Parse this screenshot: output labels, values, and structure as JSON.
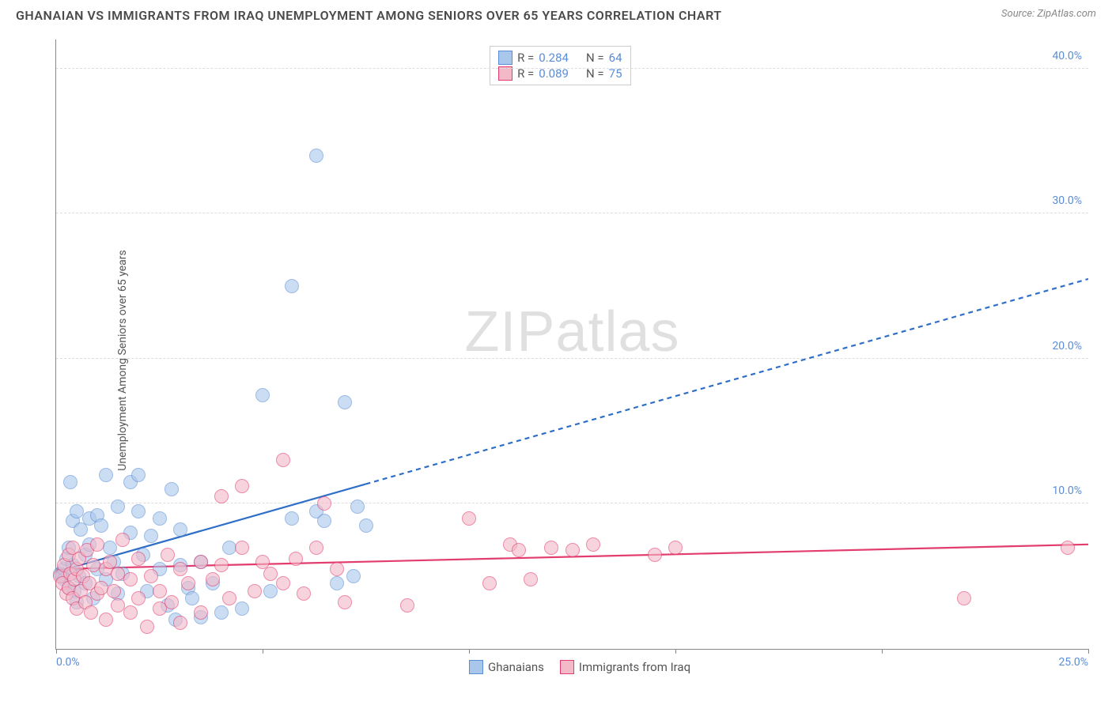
{
  "title": "GHANAIAN VS IMMIGRANTS FROM IRAQ UNEMPLOYMENT AMONG SENIORS OVER 65 YEARS CORRELATION CHART",
  "source": "Source: ZipAtlas.com",
  "y_axis_label": "Unemployment Among Seniors over 65 years",
  "watermark": "ZIPatlas",
  "chart": {
    "type": "scatter",
    "background_color": "#ffffff",
    "grid_color": "#dddddd",
    "axis_color": "#888888",
    "tick_label_color": "#5b8dd6",
    "xlim": [
      0,
      25
    ],
    "ylim": [
      0,
      42
    ],
    "y_ticks": [
      10,
      20,
      30,
      40
    ],
    "y_tick_labels": [
      "10.0%",
      "20.0%",
      "30.0%",
      "40.0%"
    ],
    "x_ticks": [
      0,
      5,
      10,
      15,
      20,
      25
    ],
    "x_tick_labels_visible": {
      "0": "0.0%",
      "25": "25.0%"
    },
    "point_radius": 9,
    "point_border_width": 1,
    "series": [
      {
        "name": "Ghanaians",
        "fill_color": "#a9c7ea",
        "border_color": "#5b8dd6",
        "fill_opacity": 0.6,
        "R": "0.284",
        "N": "64",
        "trend": {
          "x1": 0,
          "y1": 5.3,
          "x2": 25,
          "y2": 25.5,
          "solid_until_x": 7.5,
          "color": "#2f6fc8",
          "width": 2.2,
          "dash": "6,5"
        },
        "points": [
          [
            0.1,
            5.2
          ],
          [
            0.15,
            5.0
          ],
          [
            0.2,
            5.5
          ],
          [
            0.2,
            4.8
          ],
          [
            0.25,
            6.2
          ],
          [
            0.3,
            7.0
          ],
          [
            0.3,
            4.2
          ],
          [
            0.35,
            11.5
          ],
          [
            0.4,
            5.8
          ],
          [
            0.4,
            8.8
          ],
          [
            0.45,
            4.0
          ],
          [
            0.5,
            9.5
          ],
          [
            0.5,
            3.2
          ],
          [
            0.55,
            5.0
          ],
          [
            0.6,
            8.2
          ],
          [
            0.7,
            6.5
          ],
          [
            0.7,
            4.5
          ],
          [
            0.8,
            9.0
          ],
          [
            0.8,
            7.2
          ],
          [
            0.9,
            3.5
          ],
          [
            1.0,
            9.2
          ],
          [
            1.0,
            5.5
          ],
          [
            1.1,
            8.5
          ],
          [
            1.2,
            12.0
          ],
          [
            1.2,
            4.8
          ],
          [
            1.3,
            7.0
          ],
          [
            1.4,
            6.0
          ],
          [
            1.5,
            9.8
          ],
          [
            1.5,
            3.8
          ],
          [
            1.6,
            5.2
          ],
          [
            1.8,
            11.5
          ],
          [
            1.8,
            8.0
          ],
          [
            2.0,
            9.5
          ],
          [
            2.0,
            12.0
          ],
          [
            2.1,
            6.5
          ],
          [
            2.2,
            4.0
          ],
          [
            2.3,
            7.8
          ],
          [
            2.5,
            5.5
          ],
          [
            2.5,
            9.0
          ],
          [
            2.7,
            3.0
          ],
          [
            2.8,
            11.0
          ],
          [
            2.9,
            2.0
          ],
          [
            3.0,
            5.8
          ],
          [
            3.0,
            8.2
          ],
          [
            3.2,
            4.2
          ],
          [
            3.3,
            3.5
          ],
          [
            3.5,
            2.2
          ],
          [
            3.5,
            6.0
          ],
          [
            3.8,
            4.5
          ],
          [
            4.0,
            2.5
          ],
          [
            4.2,
            7.0
          ],
          [
            4.5,
            2.8
          ],
          [
            5.0,
            17.5
          ],
          [
            5.2,
            4.0
          ],
          [
            5.7,
            9.0
          ],
          [
            5.7,
            25.0
          ],
          [
            6.3,
            34.0
          ],
          [
            6.3,
            9.5
          ],
          [
            6.5,
            8.8
          ],
          [
            6.8,
            4.5
          ],
          [
            7.0,
            17.0
          ],
          [
            7.2,
            5.0
          ],
          [
            7.3,
            9.8
          ],
          [
            7.5,
            8.5
          ]
        ]
      },
      {
        "name": "Immigrants from Iraq",
        "fill_color": "#f3b9c8",
        "border_color": "#e23d6e",
        "fill_opacity": 0.6,
        "R": "0.089",
        "N": "75",
        "trend": {
          "x1": 0,
          "y1": 5.5,
          "x2": 25,
          "y2": 7.2,
          "solid_until_x": 25,
          "color": "#e23d6e",
          "width": 2.2,
          "dash": "none"
        },
        "points": [
          [
            0.1,
            5.0
          ],
          [
            0.15,
            4.5
          ],
          [
            0.2,
            5.8
          ],
          [
            0.25,
            3.8
          ],
          [
            0.3,
            6.5
          ],
          [
            0.3,
            4.2
          ],
          [
            0.35,
            5.2
          ],
          [
            0.4,
            7.0
          ],
          [
            0.4,
            3.5
          ],
          [
            0.45,
            4.8
          ],
          [
            0.5,
            5.5
          ],
          [
            0.5,
            2.8
          ],
          [
            0.55,
            6.2
          ],
          [
            0.6,
            4.0
          ],
          [
            0.65,
            5.0
          ],
          [
            0.7,
            3.2
          ],
          [
            0.75,
            6.8
          ],
          [
            0.8,
            4.5
          ],
          [
            0.85,
            2.5
          ],
          [
            0.9,
            5.8
          ],
          [
            1.0,
            3.8
          ],
          [
            1.0,
            7.2
          ],
          [
            1.1,
            4.2
          ],
          [
            1.2,
            5.5
          ],
          [
            1.2,
            2.0
          ],
          [
            1.3,
            6.0
          ],
          [
            1.4,
            4.0
          ],
          [
            1.5,
            3.0
          ],
          [
            1.5,
            5.2
          ],
          [
            1.6,
            7.5
          ],
          [
            1.8,
            2.5
          ],
          [
            1.8,
            4.8
          ],
          [
            2.0,
            6.2
          ],
          [
            2.0,
            3.5
          ],
          [
            2.2,
            1.5
          ],
          [
            2.3,
            5.0
          ],
          [
            2.5,
            4.0
          ],
          [
            2.5,
            2.8
          ],
          [
            2.7,
            6.5
          ],
          [
            2.8,
            3.2
          ],
          [
            3.0,
            5.5
          ],
          [
            3.0,
            1.8
          ],
          [
            3.2,
            4.5
          ],
          [
            3.5,
            6.0
          ],
          [
            3.5,
            2.5
          ],
          [
            3.8,
            4.8
          ],
          [
            4.0,
            10.5
          ],
          [
            4.0,
            5.8
          ],
          [
            4.2,
            3.5
          ],
          [
            4.5,
            11.2
          ],
          [
            4.5,
            7.0
          ],
          [
            4.8,
            4.0
          ],
          [
            5.0,
            6.0
          ],
          [
            5.2,
            5.2
          ],
          [
            5.5,
            13.0
          ],
          [
            5.5,
            4.5
          ],
          [
            5.8,
            6.2
          ],
          [
            6.0,
            3.8
          ],
          [
            6.3,
            7.0
          ],
          [
            6.5,
            10.0
          ],
          [
            6.8,
            5.5
          ],
          [
            7.0,
            3.2
          ],
          [
            8.5,
            3.0
          ],
          [
            10.0,
            9.0
          ],
          [
            10.5,
            4.5
          ],
          [
            11.0,
            7.2
          ],
          [
            11.2,
            6.8
          ],
          [
            11.5,
            4.8
          ],
          [
            12.0,
            7.0
          ],
          [
            12.5,
            6.8
          ],
          [
            13.0,
            7.2
          ],
          [
            14.5,
            6.5
          ],
          [
            15.0,
            7.0
          ],
          [
            22.0,
            3.5
          ],
          [
            24.5,
            7.0
          ]
        ]
      }
    ]
  },
  "legend_top": {
    "rows": [
      {
        "swatch_fill": "#a9c7ea",
        "swatch_border": "#5b8dd6",
        "r_label": "R =",
        "r_val": "0.284",
        "n_label": "N =",
        "n_val": "64"
      },
      {
        "swatch_fill": "#f3b9c8",
        "swatch_border": "#e23d6e",
        "r_label": "R =",
        "r_val": "0.089",
        "n_label": "N =",
        "n_val": "75"
      }
    ]
  },
  "legend_bottom": {
    "items": [
      {
        "swatch_fill": "#a9c7ea",
        "swatch_border": "#5b8dd6",
        "label": "Ghanaians"
      },
      {
        "swatch_fill": "#f3b9c8",
        "swatch_border": "#e23d6e",
        "label": "Immigrants from Iraq"
      }
    ]
  }
}
